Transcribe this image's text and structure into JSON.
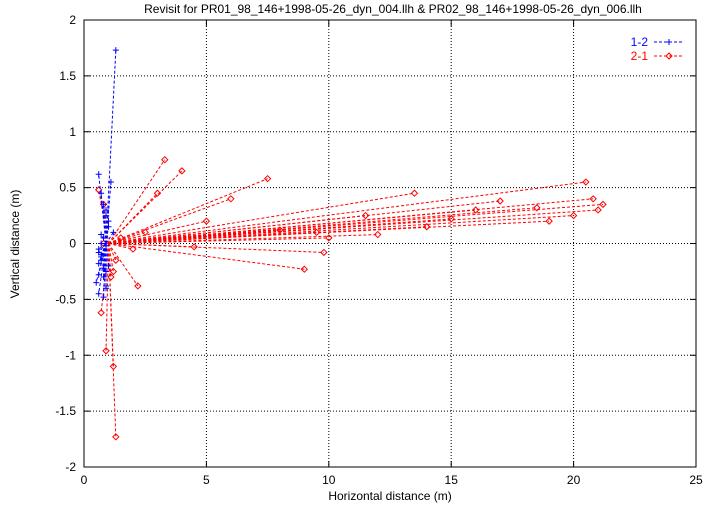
{
  "chart_data": {
    "type": "scatter",
    "title": "Revisit for PR01_98_146+1998-05-26_dyn_004.llh & PR02_98_146+1998-05-26_dyn_006.llh",
    "xlabel": "Horizontal distance (m)",
    "ylabel": "Vertical distance (m)",
    "xlim": [
      0,
      25
    ],
    "ylim": [
      -2,
      2
    ],
    "x_ticks": [
      0,
      5,
      10,
      15,
      20,
      25
    ],
    "y_ticks": [
      -2,
      -1.5,
      -1,
      -0.5,
      0,
      0.5,
      1,
      1.5,
      2
    ],
    "x_tick_labels": [
      "0",
      "5",
      "10",
      "15",
      "20",
      "25"
    ],
    "y_tick_labels": [
      "-2",
      "-1.5",
      "-1",
      "-0.5",
      "0",
      "0.5",
      "1",
      "1.5",
      "2"
    ],
    "grid": true,
    "legend_position": "top-right",
    "series": [
      {
        "name": "1-2",
        "color": "#0000ff",
        "marker": "plus",
        "line": "dashed",
        "x": [
          1.3,
          1.1,
          0.9,
          0.6,
          0.7,
          0.9,
          1.0,
          1.2,
          0.8,
          0.6,
          0.7,
          0.9,
          0.5,
          0.6,
          0.8,
          1.0,
          0.7,
          0.6,
          0.9,
          0.8,
          0.6,
          0.7,
          0.9,
          1.0,
          0.8,
          0.7,
          0.6,
          0.8,
          0.9,
          0.7
        ],
        "y": [
          1.73,
          0.55,
          0.25,
          0.62,
          0.45,
          0.3,
          0.2,
          0.1,
          0.05,
          -0.05,
          -0.15,
          -0.25,
          -0.35,
          -0.45,
          -0.3,
          -0.2,
          -0.1,
          -0.18,
          -0.38,
          -0.48,
          -0.28,
          -0.12,
          -0.02,
          0.15,
          0.35,
          0.08,
          -0.08,
          -0.22,
          -0.4,
          0.0
        ]
      },
      {
        "name": "2-1",
        "color": "#ff0000",
        "marker": "diamond",
        "line": "dashed",
        "x": [
          3.3,
          4.0,
          7.5,
          9.5,
          9.8,
          13.5,
          20.5,
          21.2,
          20.0,
          19.0,
          16.0,
          14.0,
          12.0,
          11.5,
          9.0,
          6.0,
          5.0,
          3.0,
          2.5,
          2.0,
          1.3,
          1.2,
          0.9,
          0.7,
          0.6,
          1.1,
          1.3,
          0.8,
          1.5,
          1.2,
          17.0,
          18.5,
          20.8,
          21.0,
          15.0,
          10.0,
          8.0,
          4.5,
          2.2,
          0.8
        ],
        "y": [
          0.75,
          0.65,
          0.58,
          0.1,
          -0.08,
          0.45,
          0.55,
          0.35,
          0.25,
          0.2,
          0.3,
          0.15,
          0.08,
          0.25,
          -0.23,
          0.4,
          0.2,
          0.45,
          0.1,
          -0.05,
          -1.73,
          -1.1,
          -0.96,
          -0.62,
          0.48,
          -0.3,
          -0.15,
          0.35,
          0.05,
          -0.25,
          0.38,
          0.32,
          0.4,
          0.3,
          0.22,
          0.05,
          0.12,
          -0.03,
          -0.38,
          0.0
        ]
      }
    ]
  }
}
